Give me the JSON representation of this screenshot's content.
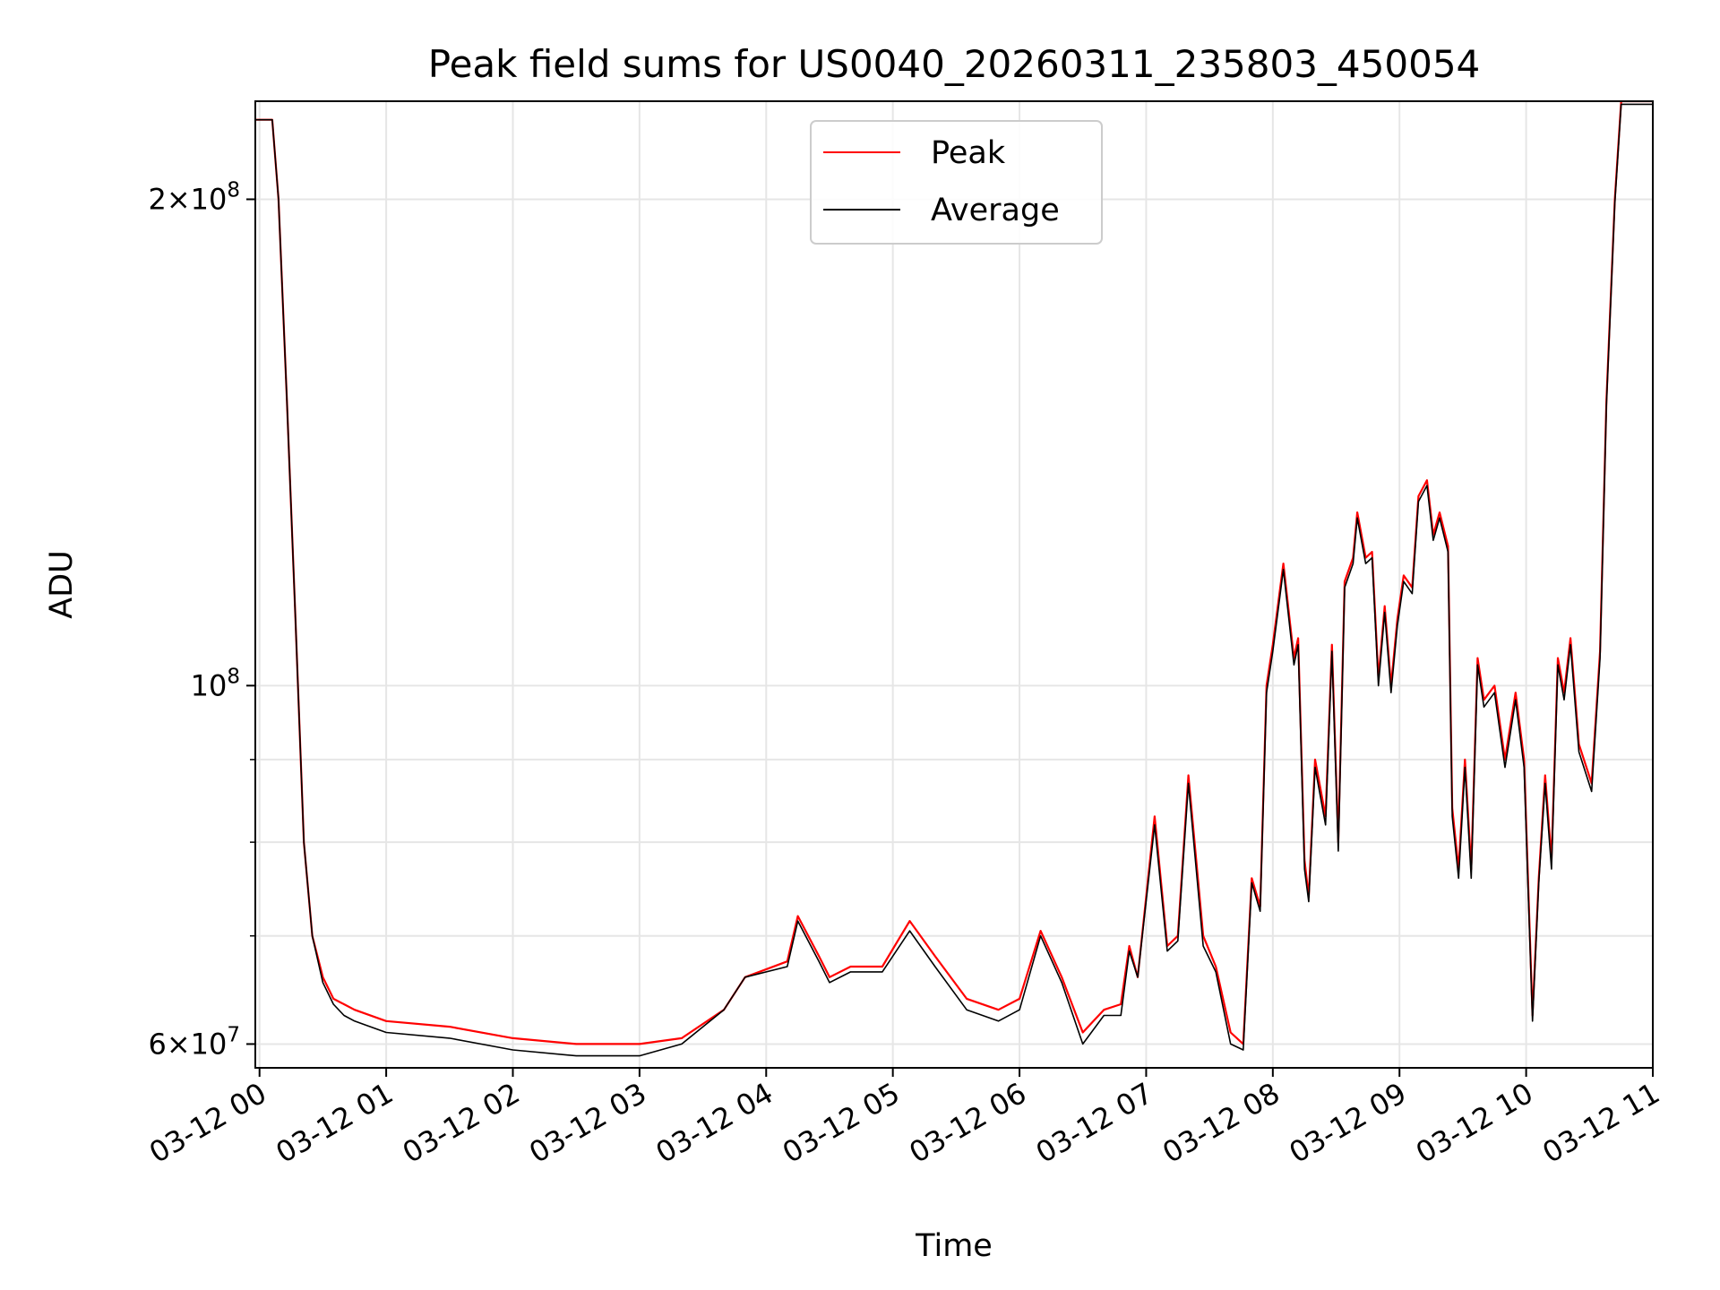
{
  "chart_data": {
    "type": "line",
    "title": "Peak field sums for US0040_20260311_235803_450054",
    "xlabel": "Time",
    "ylabel": "ADU",
    "y_scale": "log",
    "grid": true,
    "legend_position": "top-center",
    "xlim": [
      "2026-03-11 23:58",
      "2026-03-12 11:00"
    ],
    "ylim": [
      58000000,
      230000000
    ],
    "x_ticks": [
      {
        "t": "2026-03-12 00:00",
        "label": "03-12 00"
      },
      {
        "t": "2026-03-12 01:00",
        "label": "03-12 01"
      },
      {
        "t": "2026-03-12 02:00",
        "label": "03-12 02"
      },
      {
        "t": "2026-03-12 03:00",
        "label": "03-12 03"
      },
      {
        "t": "2026-03-12 04:00",
        "label": "03-12 04"
      },
      {
        "t": "2026-03-12 05:00",
        "label": "03-12 05"
      },
      {
        "t": "2026-03-12 06:00",
        "label": "03-12 06"
      },
      {
        "t": "2026-03-12 07:00",
        "label": "03-12 07"
      },
      {
        "t": "2026-03-12 08:00",
        "label": "03-12 08"
      },
      {
        "t": "2026-03-12 09:00",
        "label": "03-12 09"
      },
      {
        "t": "2026-03-12 10:00",
        "label": "03-12 10"
      },
      {
        "t": "2026-03-12 11:00",
        "label": "03-12 11"
      }
    ],
    "y_ticks_major": [
      {
        "value": 60000000,
        "mant": "6",
        "exp": "7"
      },
      {
        "value": 100000000,
        "mant": "",
        "exp": "8"
      },
      {
        "value": 200000000,
        "mant": "2",
        "exp": "8"
      }
    ],
    "y_ticks_minor": [
      70000000,
      80000000,
      90000000
    ],
    "series": [
      {
        "name": "Peak",
        "color": "#ff0000",
        "x": [
          "2026-03-11 23:58",
          "2026-03-12 00:06",
          "2026-03-12 00:09",
          "2026-03-12 00:13",
          "2026-03-12 00:17",
          "2026-03-12 00:21",
          "2026-03-12 00:25",
          "2026-03-12 00:30",
          "2026-03-12 00:35",
          "2026-03-12 00:40",
          "2026-03-12 00:45",
          "2026-03-12 01:00",
          "2026-03-12 01:30",
          "2026-03-12 02:00",
          "2026-03-12 02:30",
          "2026-03-12 03:00",
          "2026-03-12 03:20",
          "2026-03-12 03:40",
          "2026-03-12 03:50",
          "2026-03-12 04:10",
          "2026-03-12 04:15",
          "2026-03-12 04:25",
          "2026-03-12 04:30",
          "2026-03-12 04:40",
          "2026-03-12 04:55",
          "2026-03-12 05:08",
          "2026-03-12 05:20",
          "2026-03-12 05:35",
          "2026-03-12 05:50",
          "2026-03-12 06:00",
          "2026-03-12 06:10",
          "2026-03-12 06:20",
          "2026-03-12 06:30",
          "2026-03-12 06:40",
          "2026-03-12 06:48",
          "2026-03-12 06:52",
          "2026-03-12 06:56",
          "2026-03-12 07:04",
          "2026-03-12 07:10",
          "2026-03-12 07:15",
          "2026-03-12 07:20",
          "2026-03-12 07:27",
          "2026-03-12 07:33",
          "2026-03-12 07:40",
          "2026-03-12 07:46",
          "2026-03-12 07:50",
          "2026-03-12 07:54",
          "2026-03-12 07:57",
          "2026-03-12 08:00",
          "2026-03-12 08:05",
          "2026-03-12 08:10",
          "2026-03-12 08:12",
          "2026-03-12 08:15",
          "2026-03-12 08:17",
          "2026-03-12 08:20",
          "2026-03-12 08:25",
          "2026-03-12 08:28",
          "2026-03-12 08:31",
          "2026-03-12 08:34",
          "2026-03-12 08:38",
          "2026-03-12 08:40",
          "2026-03-12 08:44",
          "2026-03-12 08:47",
          "2026-03-12 08:50",
          "2026-03-12 08:53",
          "2026-03-12 08:56",
          "2026-03-12 08:59",
          "2026-03-12 09:02",
          "2026-03-12 09:06",
          "2026-03-12 09:09",
          "2026-03-12 09:13",
          "2026-03-12 09:16",
          "2026-03-12 09:19",
          "2026-03-12 09:23",
          "2026-03-12 09:25",
          "2026-03-12 09:28",
          "2026-03-12 09:31",
          "2026-03-12 09:34",
          "2026-03-12 09:37",
          "2026-03-12 09:40",
          "2026-03-12 09:45",
          "2026-03-12 09:50",
          "2026-03-12 09:55",
          "2026-03-12 09:59",
          "2026-03-12 10:03",
          "2026-03-12 10:06",
          "2026-03-12 10:09",
          "2026-03-12 10:12",
          "2026-03-12 10:15",
          "2026-03-12 10:18",
          "2026-03-12 10:21",
          "2026-03-12 10:25",
          "2026-03-12 10:31",
          "2026-03-12 10:35",
          "2026-03-12 10:38",
          "2026-03-12 10:42",
          "2026-03-12 10:45",
          "2026-03-12 10:48",
          "2026-03-12 10:51",
          "2026-03-12 10:54",
          "2026-03-12 10:57",
          "2026-03-12 11:00",
          "2026-03-12 11:02"
        ],
        "y": [
          224000000,
          224000000,
          200000000,
          150000000,
          110000000,
          80000000,
          70000000,
          66000000,
          64000000,
          63500000,
          63000000,
          62000000,
          61500000,
          60500000,
          60000000,
          60000000,
          60500000,
          63000000,
          66000000,
          67500000,
          72000000,
          68000000,
          66000000,
          67000000,
          67000000,
          71500000,
          68000000,
          64000000,
          63000000,
          64000000,
          70500000,
          66000000,
          61000000,
          63000000,
          63500000,
          69000000,
          66000000,
          83000000,
          69000000,
          70000000,
          88000000,
          70000000,
          67000000,
          61000000,
          60000000,
          76000000,
          73000000,
          100000000,
          106000000,
          119000000,
          104000000,
          107000000,
          78000000,
          74000000,
          90000000,
          83000000,
          106000000,
          80000000,
          116000000,
          120000000,
          128000000,
          120000000,
          121000000,
          101000000,
          112000000,
          100000000,
          110000000,
          117000000,
          115000000,
          131000000,
          134000000,
          124000000,
          128000000,
          122000000,
          84000000,
          77000000,
          90000000,
          77000000,
          104000000,
          98000000,
          100000000,
          90000000,
          99000000,
          90000000,
          62500000,
          76000000,
          88000000,
          78000000,
          104000000,
          99000000,
          107000000,
          92000000,
          87000000,
          105000000,
          150000000,
          200000000,
          230000000,
          230000000,
          230000000,
          230000000,
          230000000,
          230000000,
          230000000
        ]
      },
      {
        "name": "Average",
        "color": "#000000",
        "x": [
          "2026-03-11 23:58",
          "2026-03-12 00:06",
          "2026-03-12 00:09",
          "2026-03-12 00:13",
          "2026-03-12 00:17",
          "2026-03-12 00:21",
          "2026-03-12 00:25",
          "2026-03-12 00:30",
          "2026-03-12 00:35",
          "2026-03-12 00:40",
          "2026-03-12 00:45",
          "2026-03-12 01:00",
          "2026-03-12 01:30",
          "2026-03-12 02:00",
          "2026-03-12 02:30",
          "2026-03-12 03:00",
          "2026-03-12 03:20",
          "2026-03-12 03:40",
          "2026-03-12 03:50",
          "2026-03-12 04:10",
          "2026-03-12 04:15",
          "2026-03-12 04:25",
          "2026-03-12 04:30",
          "2026-03-12 04:40",
          "2026-03-12 04:55",
          "2026-03-12 05:08",
          "2026-03-12 05:20",
          "2026-03-12 05:35",
          "2026-03-12 05:50",
          "2026-03-12 06:00",
          "2026-03-12 06:10",
          "2026-03-12 06:20",
          "2026-03-12 06:30",
          "2026-03-12 06:40",
          "2026-03-12 06:48",
          "2026-03-12 06:52",
          "2026-03-12 06:56",
          "2026-03-12 07:04",
          "2026-03-12 07:10",
          "2026-03-12 07:15",
          "2026-03-12 07:20",
          "2026-03-12 07:27",
          "2026-03-12 07:33",
          "2026-03-12 07:40",
          "2026-03-12 07:46",
          "2026-03-12 07:50",
          "2026-03-12 07:54",
          "2026-03-12 07:57",
          "2026-03-12 08:00",
          "2026-03-12 08:05",
          "2026-03-12 08:10",
          "2026-03-12 08:12",
          "2026-03-12 08:15",
          "2026-03-12 08:17",
          "2026-03-12 08:20",
          "2026-03-12 08:25",
          "2026-03-12 08:28",
          "2026-03-12 08:31",
          "2026-03-12 08:34",
          "2026-03-12 08:38",
          "2026-03-12 08:40",
          "2026-03-12 08:44",
          "2026-03-12 08:47",
          "2026-03-12 08:50",
          "2026-03-12 08:53",
          "2026-03-12 08:56",
          "2026-03-12 08:59",
          "2026-03-12 09:02",
          "2026-03-12 09:06",
          "2026-03-12 09:09",
          "2026-03-12 09:13",
          "2026-03-12 09:16",
          "2026-03-12 09:19",
          "2026-03-12 09:23",
          "2026-03-12 09:25",
          "2026-03-12 09:28",
          "2026-03-12 09:31",
          "2026-03-12 09:34",
          "2026-03-12 09:37",
          "2026-03-12 09:40",
          "2026-03-12 09:45",
          "2026-03-12 09:50",
          "2026-03-12 09:55",
          "2026-03-12 09:59",
          "2026-03-12 10:03",
          "2026-03-12 10:06",
          "2026-03-12 10:09",
          "2026-03-12 10:12",
          "2026-03-12 10:15",
          "2026-03-12 10:18",
          "2026-03-12 10:21",
          "2026-03-12 10:25",
          "2026-03-12 10:31",
          "2026-03-12 10:35",
          "2026-03-12 10:38",
          "2026-03-12 10:42",
          "2026-03-12 10:45",
          "2026-03-12 10:48",
          "2026-03-12 10:51",
          "2026-03-12 10:54",
          "2026-03-12 10:57",
          "2026-03-12 11:00",
          "2026-03-12 11:02"
        ],
        "y": [
          224000000,
          224000000,
          200000000,
          150000000,
          110000000,
          80000000,
          70000000,
          65500000,
          63500000,
          62500000,
          62000000,
          61000000,
          60500000,
          59500000,
          59000000,
          59000000,
          60000000,
          63000000,
          66000000,
          67000000,
          71500000,
          67500000,
          65500000,
          66500000,
          66500000,
          70500000,
          67000000,
          63000000,
          62000000,
          63000000,
          70000000,
          65500000,
          60000000,
          62500000,
          62500000,
          68500000,
          66000000,
          82000000,
          68500000,
          69500000,
          87000000,
          69000000,
          66500000,
          60000000,
          59500000,
          75500000,
          72500000,
          99000000,
          105000000,
          118000000,
          103000000,
          106000000,
          77000000,
          73500000,
          89000000,
          82000000,
          105000000,
          79000000,
          115000000,
          119000000,
          127000000,
          119000000,
          120000000,
          100000000,
          111000000,
          99000000,
          109000000,
          116000000,
          114000000,
          130000000,
          133000000,
          123000000,
          127000000,
          121000000,
          83000000,
          76000000,
          89000000,
          76000000,
          103000000,
          97000000,
          99000000,
          89000000,
          98000000,
          89000000,
          62000000,
          75500000,
          87000000,
          77000000,
          103000000,
          98000000,
          106000000,
          91000000,
          86000000,
          104000000,
          149000000,
          199000000,
          229000000,
          229000000,
          229000000,
          229000000,
          229000000,
          229000000,
          229000000
        ]
      }
    ]
  }
}
